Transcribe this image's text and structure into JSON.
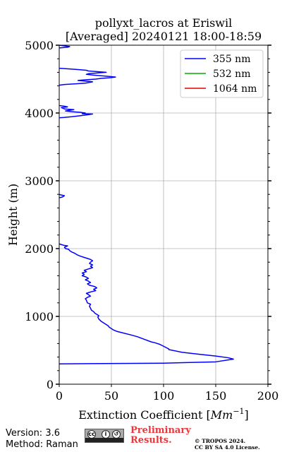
{
  "chart_data": {
    "type": "line",
    "title_line1": "pollyxt_lacros at Eriswil",
    "title_line2": "[Averaged] 20240121 18:00-18:59",
    "xlabel": "Extinction Coefficient [",
    "xlabel_unit": "Mm",
    "xlabel_exp": "−1",
    "xlabel_close": "]",
    "ylabel": "Height (m)",
    "xlim": [
      0,
      200
    ],
    "ylim": [
      0,
      5000
    ],
    "xticks": [
      "0",
      "50",
      "100",
      "150",
      "200"
    ],
    "yticks": [
      "0",
      "1000",
      "2000",
      "3000",
      "4000",
      "5000"
    ],
    "grid": true,
    "legend_position": "top-right",
    "series": [
      {
        "name": "355 nm",
        "color": "#0000ff",
        "points": [
          [
            0,
            300
          ],
          [
            100,
            310
          ],
          [
            150,
            330
          ],
          [
            167,
            370
          ],
          [
            162,
            390
          ],
          [
            150,
            415
          ],
          [
            135,
            440
          ],
          [
            118,
            470
          ],
          [
            105,
            510
          ],
          [
            105,
            520
          ],
          [
            100,
            560
          ],
          [
            96,
            590
          ],
          [
            92,
            610
          ],
          [
            88,
            625
          ],
          [
            82,
            660
          ],
          [
            75,
            700
          ],
          [
            68,
            730
          ],
          [
            60,
            760
          ],
          [
            55,
            780
          ],
          [
            52,
            800
          ],
          [
            50,
            820
          ],
          [
            48,
            840
          ],
          [
            47,
            860
          ],
          [
            45,
            880
          ],
          [
            43,
            900
          ],
          [
            40,
            930
          ],
          [
            38,
            960
          ],
          [
            37,
            990
          ],
          [
            38,
            1010
          ],
          [
            36,
            1030
          ],
          [
            34,
            1050
          ],
          [
            33,
            1070
          ],
          [
            31,
            1090
          ],
          [
            30,
            1120
          ],
          [
            29,
            1150
          ],
          [
            30,
            1180
          ],
          [
            27,
            1200
          ],
          [
            26,
            1240
          ],
          [
            25,
            1260
          ],
          [
            27,
            1280
          ],
          [
            30,
            1300
          ],
          [
            28,
            1320
          ],
          [
            26,
            1340
          ],
          [
            30,
            1360
          ],
          [
            35,
            1380
          ],
          [
            33,
            1400
          ],
          [
            36,
            1420
          ],
          [
            34,
            1440
          ],
          [
            29,
            1460
          ],
          [
            27,
            1480
          ],
          [
            30,
            1500
          ],
          [
            28,
            1520
          ],
          [
            25,
            1540
          ],
          [
            28,
            1560
          ],
          [
            26,
            1580
          ],
          [
            22,
            1600
          ],
          [
            24,
            1620
          ],
          [
            22,
            1640
          ],
          [
            26,
            1660
          ],
          [
            24,
            1680
          ],
          [
            28,
            1700
          ],
          [
            32,
            1720
          ],
          [
            30,
            1740
          ],
          [
            32,
            1760
          ],
          [
            29,
            1780
          ],
          [
            30,
            1800
          ],
          [
            32,
            1820
          ],
          [
            30,
            1840
          ],
          [
            28,
            1850
          ],
          [
            24,
            1870
          ],
          [
            20,
            1890
          ],
          [
            17,
            1910
          ],
          [
            15,
            1930
          ],
          [
            12,
            1950
          ],
          [
            10,
            1970
          ],
          [
            9,
            1990
          ],
          [
            6,
            2000
          ],
          [
            5,
            2020
          ],
          [
            8,
            2040
          ],
          [
            4,
            2050
          ],
          [
            2,
            2060
          ],
          [
            0,
            2070
          ],
          [
            null,
            null
          ],
          [
            0,
            2750
          ],
          [
            3,
            2760
          ],
          [
            5,
            2780
          ],
          [
            2,
            2790
          ],
          [
            0,
            2800
          ],
          [
            null,
            null
          ],
          [
            0,
            3930
          ],
          [
            5,
            3935
          ],
          [
            12,
            3945
          ],
          [
            20,
            3960
          ],
          [
            28,
            3975
          ],
          [
            32,
            3985
          ],
          [
            22,
            3990
          ],
          [
            25,
            4000
          ],
          [
            20,
            4010
          ],
          [
            12,
            4020
          ],
          [
            6,
            4030
          ],
          [
            10,
            4040
          ],
          [
            14,
            4050
          ],
          [
            5,
            4060
          ],
          [
            2,
            4080
          ],
          [
            8,
            4090
          ],
          [
            5,
            4100
          ],
          [
            0,
            4110
          ],
          [
            null,
            null
          ],
          [
            0,
            4410
          ],
          [
            5,
            4420
          ],
          [
            15,
            4430
          ],
          [
            25,
            4440
          ],
          [
            32,
            4460
          ],
          [
            25,
            4470
          ],
          [
            18,
            4480
          ],
          [
            25,
            4490
          ],
          [
            35,
            4500
          ],
          [
            40,
            4510
          ],
          [
            48,
            4520
          ],
          [
            54,
            4530
          ],
          [
            47,
            4540
          ],
          [
            40,
            4550
          ],
          [
            32,
            4560
          ],
          [
            26,
            4570
          ],
          [
            28,
            4580
          ],
          [
            36,
            4590
          ],
          [
            45,
            4600
          ],
          [
            37,
            4610
          ],
          [
            28,
            4620
          ],
          [
            26,
            4630
          ],
          [
            18,
            4640
          ],
          [
            10,
            4650
          ],
          [
            0,
            4660
          ],
          [
            null,
            null
          ],
          [
            0,
            4960
          ],
          [
            8,
            4970
          ],
          [
            10,
            4980
          ],
          [
            5,
            4990
          ],
          [
            0,
            5000
          ]
        ]
      },
      {
        "name": "532 nm",
        "color": "#00b000",
        "points": []
      },
      {
        "name": "1064 nm",
        "color": "#dd0000",
        "points": []
      }
    ]
  },
  "footer": {
    "version": "Version: 3.6",
    "method": "Method: Raman",
    "license_badge": [
      "cc",
      "by",
      "sa"
    ],
    "preliminary_line1": "Preliminary",
    "preliminary_line2": "Results.",
    "copyright_line1": "© TROPOS 2024.",
    "copyright_line2": "CC BY SA 4.0 License."
  }
}
